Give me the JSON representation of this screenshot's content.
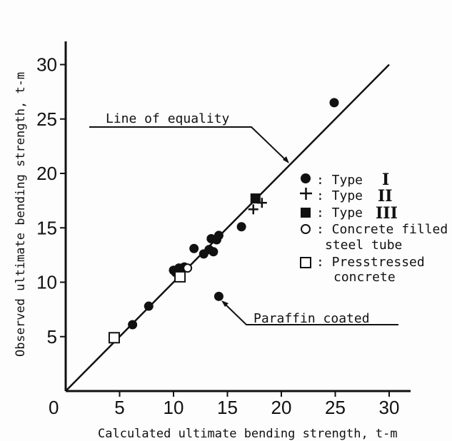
{
  "chart_data": {
    "type": "scatter",
    "xlabel": "Calculated ultimate bending strength, t-m",
    "ylabel": "Observed ultimate bending strength, t-m",
    "xlim": [
      0,
      32
    ],
    "ylim": [
      0,
      32
    ],
    "x_ticks": [
      "0",
      "5",
      "10",
      "15",
      "20",
      "25",
      "30"
    ],
    "y_ticks": [
      "5",
      "10",
      "15",
      "20",
      "25",
      "30"
    ],
    "reference_line": {
      "label": "Line of equality",
      "from": [
        0,
        0
      ],
      "to": [
        30,
        30
      ]
    },
    "legend": [
      {
        "marker": "filled-circle",
        "text": ": Type",
        "roman": "I"
      },
      {
        "marker": "plus",
        "text": ": Type",
        "roman": "II"
      },
      {
        "marker": "filled-square",
        "text": ": Type",
        "roman": "III"
      },
      {
        "marker": "open-circle",
        "text": [
          ": Concrete filled",
          "steel tube"
        ]
      },
      {
        "marker": "open-square",
        "text": [
          ": Presstressed",
          "concrete"
        ]
      }
    ],
    "annotation": {
      "text": "Paraffin coated",
      "point": [
        14.2,
        8.7
      ]
    },
    "series": [
      {
        "marker": "filled-circle",
        "points": [
          [
            6.2,
            6.1
          ],
          [
            7.7,
            7.8
          ],
          [
            10.0,
            11.1
          ],
          [
            10.2,
            10.9
          ],
          [
            10.5,
            11.3
          ],
          [
            11.0,
            11.4
          ],
          [
            11.9,
            13.1
          ],
          [
            12.8,
            12.6
          ],
          [
            13.3,
            13.0
          ],
          [
            13.5,
            14.0
          ],
          [
            13.7,
            12.8
          ],
          [
            14.0,
            13.9
          ],
          [
            14.2,
            14.3
          ],
          [
            16.3,
            15.1
          ],
          [
            24.9,
            26.5
          ],
          [
            14.2,
            8.7
          ]
        ]
      },
      {
        "marker": "plus",
        "points": [
          [
            17.4,
            16.7
          ],
          [
            18.2,
            17.3
          ]
        ]
      },
      {
        "marker": "filled-square",
        "points": [
          [
            17.6,
            17.7
          ]
        ]
      },
      {
        "marker": "open-circle",
        "points": [
          [
            11.3,
            11.3
          ]
        ]
      },
      {
        "marker": "open-square",
        "points": [
          [
            4.5,
            4.9
          ],
          [
            10.6,
            10.5
          ]
        ]
      }
    ]
  }
}
